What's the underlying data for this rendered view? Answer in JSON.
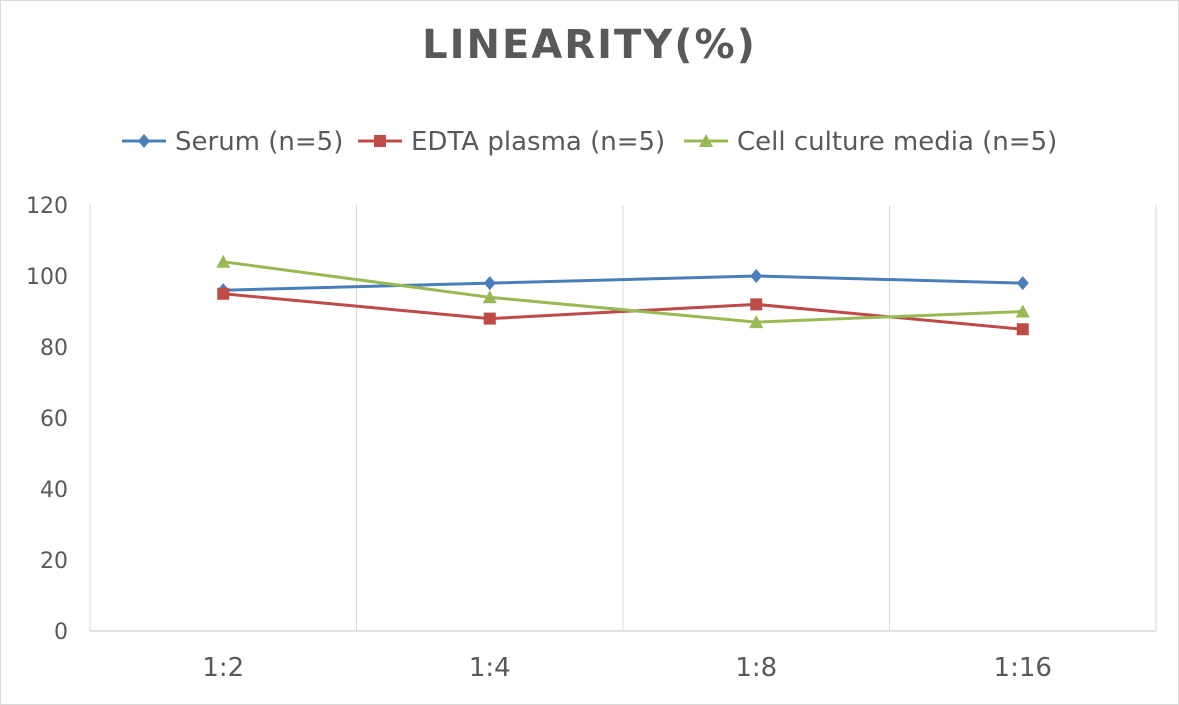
{
  "chart_data": {
    "type": "line",
    "title": "LINEARITY(%)",
    "categories": [
      "1:2",
      "1:4",
      "1:8",
      "1:16"
    ],
    "series": [
      {
        "name": "Serum (n=5)",
        "values": [
          96,
          98,
          100,
          98
        ],
        "color": "#4a7ebb",
        "marker": "diamond"
      },
      {
        "name": "EDTA plasma (n=5)",
        "values": [
          95,
          88,
          92,
          85
        ],
        "color": "#be4b48",
        "marker": "square"
      },
      {
        "name": "Cell culture media (n=5)",
        "values": [
          104,
          94,
          87,
          90
        ],
        "color": "#98b954",
        "marker": "triangle"
      }
    ],
    "xlabel": "",
    "ylabel": "",
    "ylim": [
      0,
      120
    ],
    "yticks": [
      0,
      20,
      40,
      60,
      80,
      100,
      120
    ],
    "grid": "vertical",
    "legend": "top"
  }
}
